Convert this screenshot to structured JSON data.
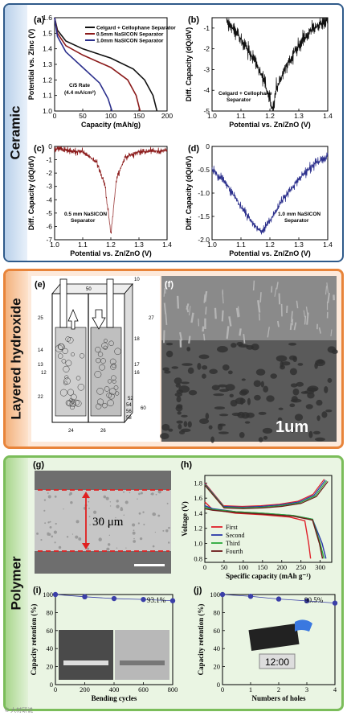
{
  "sections": {
    "ceramic": "Ceramic",
    "layered": "Layered hydroxide",
    "polymer": "Polymer"
  },
  "panels": {
    "a": "(a)",
    "b": "(b)",
    "c": "(c)",
    "d": "(d)",
    "e": "(e)",
    "f": "(f)",
    "g": "(g)",
    "h": "(h)",
    "i": "(i)",
    "j": "(j)"
  },
  "chart_data": [
    {
      "id": "a",
      "type": "line",
      "xlabel": "Capacity (mAh/g)",
      "ylabel": "Potential vs. Zinc (V)",
      "xlim": [
        0,
        200
      ],
      "ylim": [
        1.0,
        1.6
      ],
      "xticks": [
        "0",
        "50",
        "100",
        "150",
        "200"
      ],
      "yticks": [
        "1.0",
        "1.1",
        "1.2",
        "1.3",
        "1.4",
        "1.5",
        "1.6"
      ],
      "annotations": [
        "C/5 Rate",
        "(4.4 mA/cm²)"
      ],
      "series": [
        {
          "name": "Celgard + Cellophane Separator",
          "color": "#111111",
          "x": [
            0,
            5,
            20,
            50,
            100,
            140,
            160,
            175,
            182
          ],
          "y": [
            1.6,
            1.52,
            1.45,
            1.4,
            1.34,
            1.27,
            1.2,
            1.1,
            1.0
          ]
        },
        {
          "name": "0.5mm NaSICON Separator",
          "color": "#8b1a1a",
          "x": [
            0,
            5,
            20,
            50,
            100,
            130,
            145,
            152
          ],
          "y": [
            1.6,
            1.5,
            1.42,
            1.36,
            1.28,
            1.2,
            1.1,
            1.0
          ]
        },
        {
          "name": "1.0mm NaSICON Separator",
          "color": "#2b2f8c",
          "x": [
            0,
            5,
            20,
            50,
            80,
            95,
            102
          ],
          "y": [
            1.6,
            1.48,
            1.38,
            1.28,
            1.18,
            1.08,
            1.0
          ]
        }
      ]
    },
    {
      "id": "b",
      "type": "line",
      "xlabel": "Potential vs. Zn/ZnO (V)",
      "ylabel": "Diff. Capacity (dQ/dV)",
      "xlim": [
        1.0,
        1.4
      ],
      "ylim": [
        -5,
        -0.5
      ],
      "xticks": [
        "1.0",
        "1.1",
        "1.2",
        "1.3",
        "1.4"
      ],
      "yticks": [
        "-1",
        "-2",
        "-3",
        "-4",
        "-5"
      ],
      "annotations": [
        "Celgard + Cellophane",
        "Separator"
      ],
      "series": [
        {
          "name": "",
          "color": "#111111",
          "x": [
            1.05,
            1.1,
            1.15,
            1.18,
            1.2,
            1.21,
            1.22,
            1.25,
            1.3,
            1.35,
            1.4
          ],
          "y": [
            -0.7,
            -1.5,
            -2.6,
            -3.6,
            -4.4,
            -5.0,
            -4.0,
            -3.0,
            -1.8,
            -1.0,
            -0.6
          ]
        }
      ]
    },
    {
      "id": "c",
      "type": "line",
      "xlabel": "Potential vs. Zn/ZnO (V)",
      "ylabel": "Diff. Capacity (dQ/dV)",
      "xlim": [
        1.0,
        1.4
      ],
      "ylim": [
        -7,
        0
      ],
      "xticks": [
        "1.0",
        "1.1",
        "1.2",
        "1.3",
        "1.4"
      ],
      "yticks": [
        "0",
        "-1",
        "-2",
        "-3",
        "-4",
        "-5",
        "-6",
        "-7"
      ],
      "annotations": [
        "0.5 mm NaSICON",
        "Separator"
      ],
      "series": [
        {
          "name": "",
          "color": "#8b1a1a",
          "x": [
            1.0,
            1.1,
            1.15,
            1.18,
            1.2,
            1.21,
            1.22,
            1.25,
            1.3,
            1.4
          ],
          "y": [
            -0.2,
            -0.4,
            -1.2,
            -3.0,
            -6.6,
            -4.5,
            -2.5,
            -0.8,
            -0.4,
            -0.3
          ]
        }
      ]
    },
    {
      "id": "d",
      "type": "line",
      "xlabel": "Potential vs. Zn/ZnO (V)",
      "ylabel": "Diff. Capacity (dQ/dV)",
      "xlim": [
        1.0,
        1.4
      ],
      "ylim": [
        -2.0,
        0
      ],
      "xticks": [
        "1.0",
        "1.1",
        "1.2",
        "1.3",
        "1.4"
      ],
      "yticks": [
        "0",
        "-0.5",
        "-1.0",
        "-1.5",
        "-2.0"
      ],
      "annotations": [
        "1.0 mm NaSICON",
        "Separator"
      ],
      "series": [
        {
          "name": "",
          "color": "#2b2f8c",
          "x": [
            1.0,
            1.05,
            1.1,
            1.15,
            1.17,
            1.2,
            1.25,
            1.3,
            1.35,
            1.4
          ],
          "y": [
            -0.5,
            -0.8,
            -1.3,
            -1.7,
            -1.85,
            -1.6,
            -1.1,
            -0.7,
            -0.4,
            -0.2
          ]
        }
      ]
    },
    {
      "id": "h",
      "type": "line",
      "xlabel": "Specific capacity (mAh g⁻¹)",
      "ylabel": "Voltage (V)",
      "xlim": [
        0,
        330
      ],
      "ylim": [
        0.75,
        1.9
      ],
      "xticks": [
        "0",
        "50",
        "100",
        "150",
        "200",
        "250",
        "300"
      ],
      "yticks": [
        "0.8",
        "1.0",
        "1.2",
        "1.4",
        "1.6",
        "1.8"
      ],
      "series": [
        {
          "name": "First",
          "color": "#e0202a",
          "x": [
            0,
            20,
            80,
            150,
            220,
            260,
            270,
            275
          ],
          "y": [
            1.55,
            1.45,
            1.4,
            1.38,
            1.35,
            1.3,
            1.0,
            0.8
          ]
        },
        {
          "name": "Second",
          "color": "#2a3aa8",
          "x": [
            0,
            20,
            80,
            150,
            230,
            280,
            305,
            315
          ],
          "y": [
            1.5,
            1.46,
            1.42,
            1.4,
            1.37,
            1.32,
            1.0,
            0.8
          ]
        },
        {
          "name": "Third",
          "color": "#2aa83a",
          "x": [
            0,
            20,
            80,
            150,
            230,
            280,
            300,
            310
          ],
          "y": [
            1.48,
            1.45,
            1.42,
            1.4,
            1.37,
            1.32,
            1.0,
            0.8
          ]
        },
        {
          "name": "Fourth",
          "color": "#6b1a1a",
          "x": [
            0,
            20,
            80,
            150,
            230,
            280,
            298,
            306
          ],
          "y": [
            1.46,
            1.44,
            1.41,
            1.39,
            1.36,
            1.31,
            1.0,
            0.8
          ]
        }
      ]
    },
    {
      "id": "i",
      "type": "scatter",
      "xlabel": "Bending cycles",
      "ylabel": "Capacity retention (%)",
      "xlim": [
        0,
        800
      ],
      "ylim": [
        0,
        100
      ],
      "xticks": [
        "0",
        "200",
        "400",
        "600",
        "800"
      ],
      "yticks": [
        "0",
        "20",
        "40",
        "60",
        "80",
        "100"
      ],
      "annotations": [
        "93.1%"
      ],
      "series": [
        {
          "name": "",
          "color": "#3b3fa8",
          "x": [
            0,
            200,
            400,
            600,
            800
          ],
          "y": [
            100,
            97.5,
            95.5,
            94.5,
            93.1
          ]
        }
      ]
    },
    {
      "id": "j",
      "type": "scatter",
      "xlabel": "Numbers of holes",
      "ylabel": "Capacity retention (%)",
      "xlim": [
        0,
        4
      ],
      "ylim": [
        0,
        100
      ],
      "xticks": [
        "0",
        "1",
        "2",
        "3",
        "4"
      ],
      "yticks": [
        "0",
        "20",
        "40",
        "60",
        "80",
        "100"
      ],
      "annotations": [
        "90.5%"
      ],
      "series": [
        {
          "name": "",
          "color": "#3b3fa8",
          "x": [
            0,
            1,
            2,
            3,
            4
          ],
          "y": [
            100,
            98,
            95,
            93,
            90.5
          ]
        }
      ]
    }
  ],
  "diagram_e": {
    "numbers": [
      "10",
      "50",
      "25",
      "27",
      "14",
      "18",
      "13",
      "12",
      "17",
      "16",
      "22",
      "52",
      "54",
      "56",
      "60",
      "58",
      "24",
      "26"
    ]
  },
  "sem_f": {
    "scale": "1um"
  },
  "sem_g": {
    "thickness": "30 μm"
  },
  "photo_j": {
    "clock": "12:00"
  },
  "watermark": "© 大材研说",
  "colors": {
    "ceramic": "#2f5a8a",
    "layered": "#e8843a",
    "polymer": "#7bbd5a"
  }
}
